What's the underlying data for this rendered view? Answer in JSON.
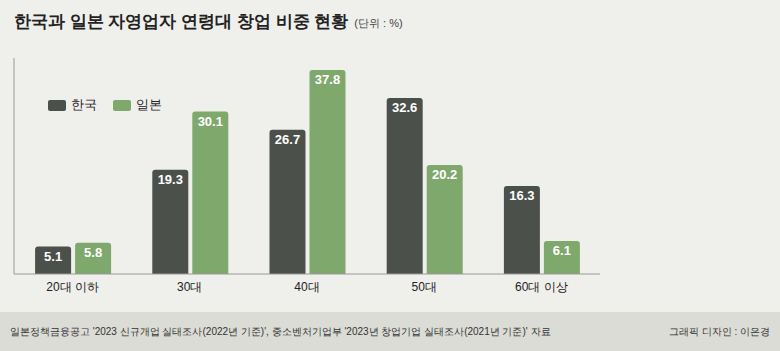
{
  "chart_data": {
    "type": "bar",
    "title": "한국과 일본 자영업자 연령대 창업 비중 현황",
    "subtitle": "(단위 : %)",
    "categories": [
      "20대 이하",
      "30대",
      "40대",
      "50대",
      "60대 이상"
    ],
    "series": [
      {
        "name": "한국",
        "color": "#4b504b",
        "values": [
          5.1,
          19.3,
          26.7,
          32.6,
          16.3
        ]
      },
      {
        "name": "일본",
        "color": "#7fa96c",
        "values": [
          5.8,
          30.1,
          37.8,
          20.2,
          6.1
        ]
      }
    ],
    "ylim": [
      0,
      40
    ],
    "grid": false,
    "legend": "upper left",
    "data_labels": true,
    "tick_labels": "x",
    "source": "일본정책금융공고 '2023 신규개업 실태조사(2022년 기준)', 중소벤처기업부 '2023년 창업기업 실태조사(2021년 기준)' 자료",
    "credit": "그래픽 디자인 : 이은경"
  }
}
